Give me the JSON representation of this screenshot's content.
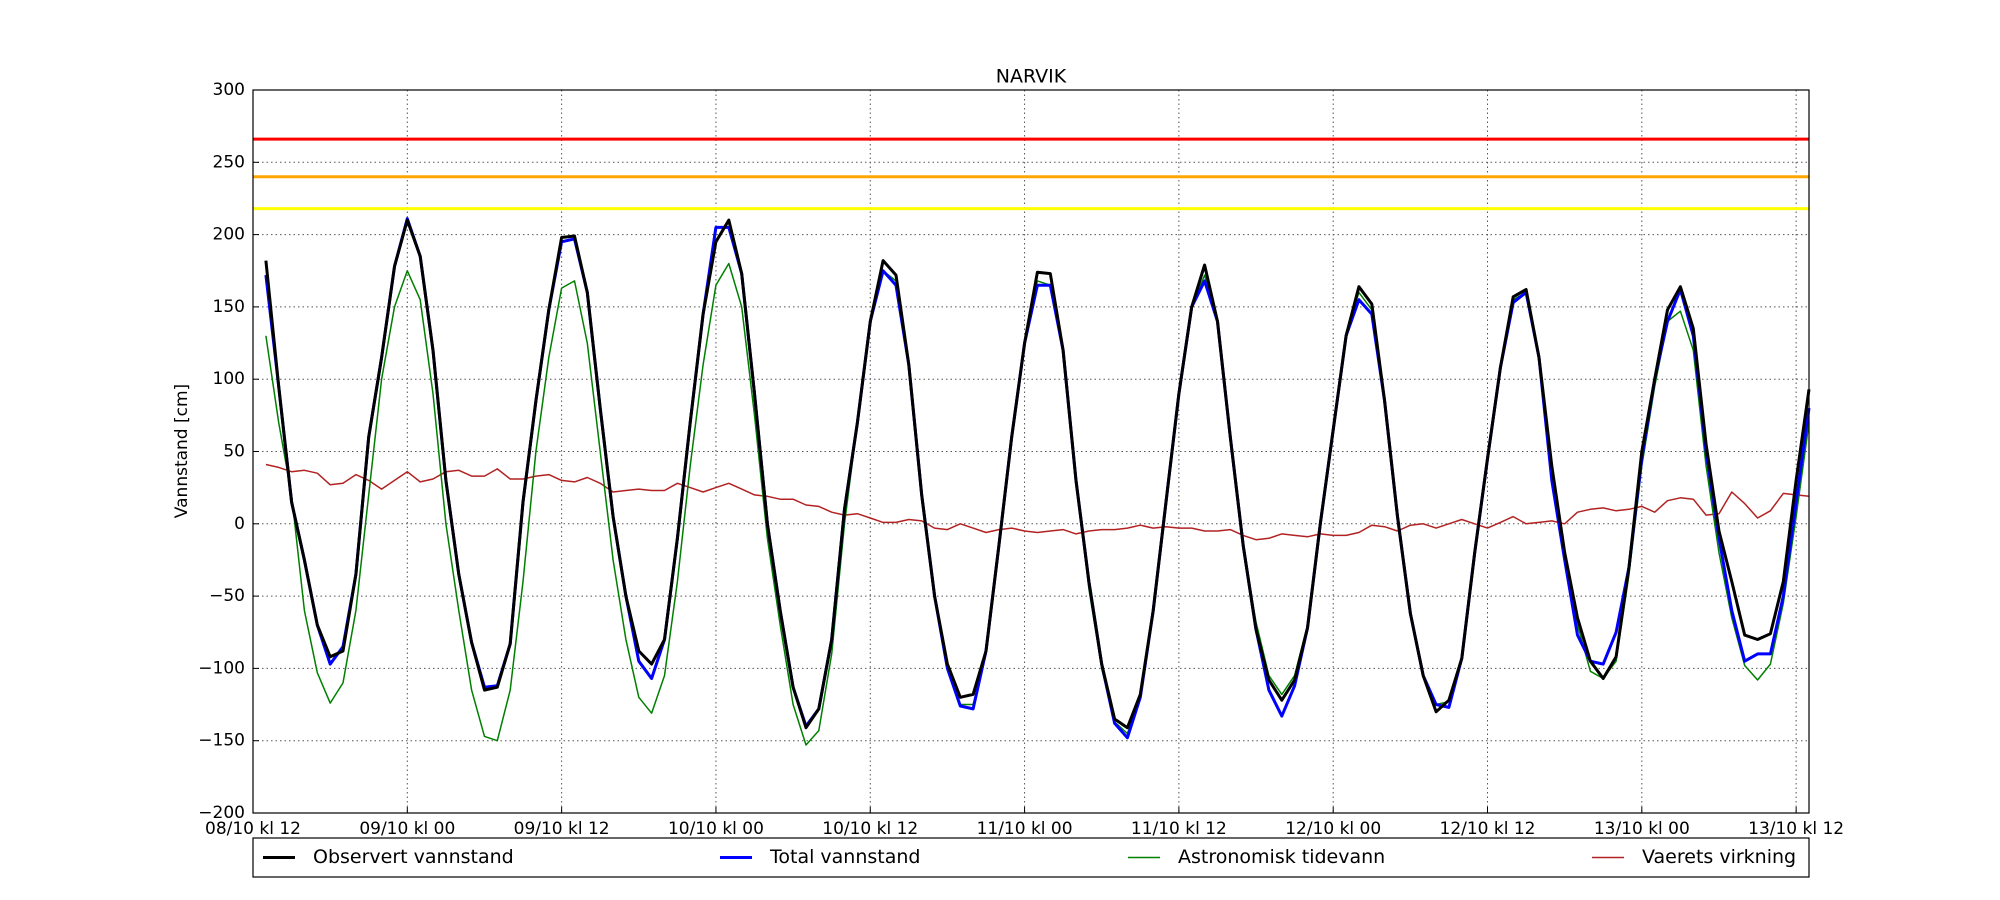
{
  "chart_data": {
    "type": "line",
    "title": "NARVIK",
    "ylabel": "Vannstand [cm]",
    "x": [
      1,
      2,
      3,
      4,
      5,
      6,
      7,
      8,
      9,
      10,
      11,
      12,
      13,
      14,
      15,
      16,
      17,
      18,
      19,
      20,
      21,
      22,
      23,
      24,
      25,
      26,
      27,
      28,
      29,
      30,
      31,
      32,
      33,
      34,
      35,
      36,
      37,
      38,
      39,
      40,
      41,
      42,
      43,
      44,
      45,
      46,
      47,
      48,
      49,
      50,
      51,
      52,
      53,
      54,
      55,
      56,
      57,
      58,
      59,
      60,
      61,
      62,
      63,
      64,
      65,
      66,
      67,
      68,
      69,
      70,
      71,
      72,
      73,
      74,
      75,
      76,
      77,
      78,
      79,
      80,
      81,
      82,
      83,
      84,
      85,
      86,
      87,
      88,
      89,
      90,
      91,
      92,
      93,
      94,
      95,
      96,
      97,
      98,
      99,
      100,
      101,
      102,
      103,
      104,
      105,
      106,
      107,
      108,
      109,
      110,
      111,
      112,
      113,
      114,
      115,
      116,
      117,
      118,
      119,
      120,
      121
    ],
    "series": [
      {
        "name": "Observert vannstand",
        "color": "#000000",
        "width": 3,
        "values": [
          182,
          95,
          15,
          -25,
          -70,
          -92,
          -88,
          -35,
          60,
          115,
          178,
          210,
          185,
          120,
          30,
          -35,
          -82,
          -115,
          -113,
          -83,
          15,
          85,
          148,
          198,
          199,
          160,
          80,
          5,
          -50,
          -88,
          -97,
          -80,
          -10,
          70,
          145,
          195,
          210,
          173,
          90,
          0,
          -60,
          -113,
          -141,
          -128,
          -80,
          10,
          70,
          140,
          182,
          172,
          110,
          20,
          -50,
          -97,
          -120,
          -118,
          -88,
          -15,
          60,
          125,
          174,
          173,
          120,
          30,
          -40,
          -97,
          -135,
          -141,
          -118,
          -60,
          15,
          90,
          150,
          179,
          140,
          60,
          -15,
          -73,
          -108,
          -122,
          -108,
          -72,
          0,
          65,
          130,
          164,
          152,
          85,
          5,
          -62,
          -105,
          -130,
          -122,
          -93,
          -20,
          45,
          108,
          157,
          162,
          115,
          40,
          -20,
          -65,
          -95,
          -107,
          -92,
          -30,
          50,
          100,
          148,
          164,
          135,
          55,
          -5,
          -40,
          -77,
          -80,
          -76,
          -40,
          30,
          93
        ]
      },
      {
        "name": "Total vannstand",
        "color": "#0000ff",
        "width": 3,
        "values": [
          172,
          95,
          15,
          -25,
          -70,
          -97,
          -85,
          -35,
          60,
          115,
          178,
          211,
          185,
          120,
          30,
          -35,
          -82,
          -113,
          -112,
          -83,
          15,
          85,
          148,
          195,
          197,
          160,
          80,
          5,
          -50,
          -95,
          -107,
          -80,
          -10,
          70,
          145,
          205,
          205,
          173,
          90,
          0,
          -60,
          -113,
          -140,
          -128,
          -80,
          10,
          70,
          140,
          175,
          165,
          110,
          20,
          -50,
          -100,
          -126,
          -128,
          -88,
          -15,
          60,
          125,
          165,
          165,
          120,
          30,
          -40,
          -97,
          -138,
          -148,
          -120,
          -60,
          15,
          90,
          150,
          168,
          140,
          60,
          -15,
          -73,
          -115,
          -133,
          -112,
          -72,
          0,
          65,
          130,
          155,
          145,
          85,
          5,
          -62,
          -105,
          -125,
          -127,
          -93,
          -20,
          45,
          108,
          153,
          160,
          115,
          30,
          -25,
          -77,
          -95,
          -97,
          -75,
          -30,
          45,
          100,
          140,
          162,
          130,
          50,
          -10,
          -60,
          -95,
          -90,
          -90,
          -50,
          15,
          80
        ]
      },
      {
        "name": "Astronomisk tidevann",
        "color": "#008000",
        "width": 1.5,
        "values": [
          130,
          70,
          20,
          -60,
          -103,
          -124,
          -110,
          -60,
          20,
          100,
          150,
          175,
          155,
          90,
          0,
          -60,
          -115,
          -147,
          -150,
          -115,
          -40,
          50,
          115,
          163,
          168,
          125,
          50,
          -25,
          -80,
          -120,
          -131,
          -105,
          -40,
          40,
          110,
          165,
          180,
          150,
          75,
          -10,
          -70,
          -125,
          -153,
          -143,
          -90,
          0,
          70,
          140,
          175,
          168,
          110,
          20,
          -50,
          -100,
          -125,
          -125,
          -90,
          -15,
          60,
          125,
          168,
          165,
          120,
          30,
          -45,
          -100,
          -137,
          -145,
          -120,
          -60,
          15,
          90,
          150,
          172,
          140,
          60,
          -15,
          -68,
          -105,
          -118,
          -105,
          -70,
          0,
          65,
          132,
          160,
          148,
          85,
          5,
          -62,
          -105,
          -125,
          -123,
          -92,
          -22,
          45,
          108,
          155,
          160,
          115,
          40,
          -25,
          -70,
          -102,
          -107,
          -95,
          -35,
          40,
          95,
          140,
          147,
          120,
          40,
          -20,
          -65,
          -98,
          -108,
          -97,
          -55,
          5,
          70
        ]
      },
      {
        "name": "Vaerets virkning",
        "color": "#b22222",
        "width": 1.5,
        "values": [
          41,
          39,
          36,
          37,
          35,
          27,
          28,
          34,
          30,
          24,
          30,
          36,
          29,
          31,
          36,
          37,
          33,
          33,
          38,
          31,
          31,
          33,
          34,
          30,
          29,
          32,
          28,
          22,
          23,
          24,
          23,
          23,
          28,
          25,
          22,
          25,
          28,
          24,
          20,
          19,
          17,
          17,
          13,
          12,
          8,
          6,
          7,
          4,
          1,
          1,
          3,
          2,
          -3,
          -4,
          0,
          -3,
          -6,
          -4,
          -3,
          -5,
          -6,
          -5,
          -4,
          -7,
          -5,
          -4,
          -4,
          -3,
          -1,
          -3,
          -2,
          -3,
          -3,
          -5,
          -5,
          -4,
          -8,
          -11,
          -10,
          -7,
          -8,
          -9,
          -7,
          -8,
          -8,
          -6,
          -1,
          -2,
          -5,
          -1,
          0,
          -3,
          0,
          3,
          0,
          -3,
          1,
          5,
          0,
          1,
          2,
          0,
          8,
          10,
          11,
          9,
          10,
          12,
          8,
          16,
          18,
          17,
          6,
          7,
          22,
          14,
          4,
          9,
          21,
          20,
          19
        ]
      }
    ],
    "thresholds": [
      {
        "value": 266,
        "color": "#ff0000"
      },
      {
        "value": 240,
        "color": "#ffa500"
      },
      {
        "value": 218,
        "color": "#ffff00"
      }
    ],
    "xlim": [
      0,
      121
    ],
    "ylim": [
      -200,
      300
    ],
    "xticks": [
      {
        "value": 0,
        "label": "08/10 kl 12"
      },
      {
        "value": 12,
        "label": "09/10 kl 00"
      },
      {
        "value": 24,
        "label": "09/10 kl 12"
      },
      {
        "value": 36,
        "label": "10/10 kl 00"
      },
      {
        "value": 48,
        "label": "10/10 kl 12"
      },
      {
        "value": 60,
        "label": "11/10 kl 00"
      },
      {
        "value": 72,
        "label": "11/10 kl 12"
      },
      {
        "value": 84,
        "label": "12/10 kl 00"
      },
      {
        "value": 96,
        "label": "12/10 kl 12"
      },
      {
        "value": 108,
        "label": "13/10 kl 00"
      },
      {
        "value": 120,
        "label": "13/10 kl 12"
      }
    ],
    "yticks": [
      {
        "value": -200,
        "label": "−200"
      },
      {
        "value": -150,
        "label": "−150"
      },
      {
        "value": -100,
        "label": "−100"
      },
      {
        "value": -50,
        "label": "−50"
      },
      0,
      50,
      100,
      150,
      200,
      250,
      300
    ],
    "grid": true
  }
}
